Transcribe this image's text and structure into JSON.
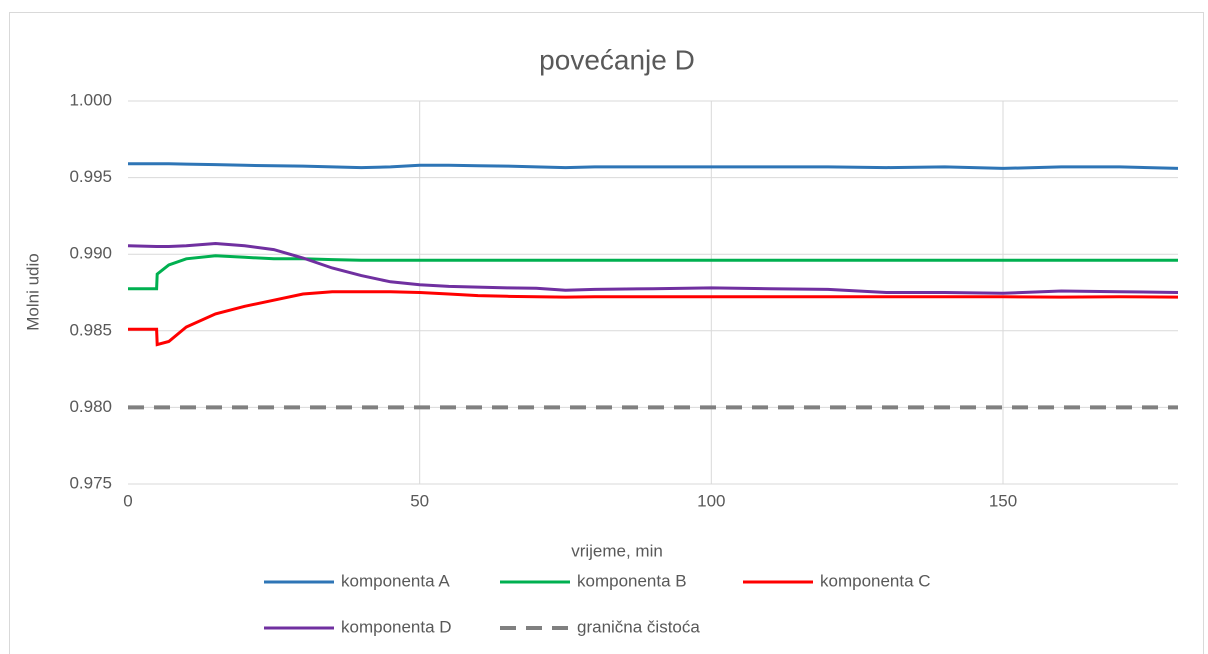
{
  "chart_data": {
    "type": "line",
    "title": "povećanje D",
    "x_label": "vrijeme, min",
    "y_label": "Molni udio",
    "xlim": [
      0,
      180
    ],
    "xticks": [
      0,
      50,
      100,
      150
    ],
    "ylim": [
      0.975,
      1.0
    ],
    "yticks": [
      {
        "value": 0.975,
        "label": "0.975"
      },
      {
        "value": 0.98,
        "label": "0.980"
      },
      {
        "value": 0.985,
        "label": "0.985"
      },
      {
        "value": 0.99,
        "label": "0.990"
      },
      {
        "value": 0.995,
        "label": "0.995"
      },
      {
        "value": 1.0,
        "label": "1.000"
      }
    ],
    "grid": true,
    "legend": "bottom",
    "x": [
      0,
      4.9,
      5,
      7,
      10,
      15,
      20,
      25,
      30,
      35,
      40,
      45,
      50,
      55,
      60,
      65,
      70,
      75,
      80,
      90,
      100,
      110,
      120,
      130,
      140,
      150,
      160,
      170,
      180
    ],
    "series": [
      {
        "name": "komponenta A",
        "color": "#2e75b6",
        "dashed": false,
        "values": [
          0.9959,
          0.9959,
          0.9959,
          0.9959,
          0.99588,
          0.99585,
          0.9958,
          0.99577,
          0.99575,
          0.9957,
          0.99565,
          0.9957,
          0.9958,
          0.9958,
          0.99578,
          0.99575,
          0.9957,
          0.99565,
          0.9957,
          0.9957,
          0.9957,
          0.9957,
          0.9957,
          0.99565,
          0.9957,
          0.9956,
          0.9957,
          0.9957,
          0.9956
        ]
      },
      {
        "name": "komponenta B",
        "color": "#00b050",
        "dashed": false,
        "values": [
          0.98775,
          0.98775,
          0.9887,
          0.9893,
          0.9897,
          0.9899,
          0.9898,
          0.9897,
          0.9897,
          0.98965,
          0.9896,
          0.9896,
          0.9896,
          0.9896,
          0.9896,
          0.9896,
          0.9896,
          0.9896,
          0.9896,
          0.9896,
          0.9896,
          0.9896,
          0.9896,
          0.9896,
          0.9896,
          0.9896,
          0.9896,
          0.9896,
          0.9896
        ]
      },
      {
        "name": "komponenta C",
        "color": "#ff0000",
        "dashed": false,
        "values": [
          0.9851,
          0.9851,
          0.9841,
          0.9843,
          0.98525,
          0.9861,
          0.9866,
          0.987,
          0.9874,
          0.98755,
          0.98755,
          0.98755,
          0.9875,
          0.9874,
          0.9873,
          0.98725,
          0.98722,
          0.9872,
          0.98722,
          0.98722,
          0.98722,
          0.98722,
          0.98722,
          0.98722,
          0.98722,
          0.98722,
          0.9872,
          0.98722,
          0.9872
        ]
      },
      {
        "name": "komponenta D",
        "color": "#7030a0",
        "dashed": false,
        "values": [
          0.99055,
          0.9905,
          0.9905,
          0.9905,
          0.99055,
          0.9907,
          0.99055,
          0.9903,
          0.98975,
          0.9891,
          0.9886,
          0.9882,
          0.988,
          0.9879,
          0.98785,
          0.9878,
          0.98778,
          0.98765,
          0.9877,
          0.98775,
          0.9878,
          0.98775,
          0.9877,
          0.9875,
          0.9875,
          0.98745,
          0.9876,
          0.98755,
          0.9875
        ]
      },
      {
        "name": "granična čistoća",
        "color": "#808080",
        "dashed": true,
        "values": [
          0.98,
          0.98,
          0.98,
          0.98,
          0.98,
          0.98,
          0.98,
          0.98,
          0.98,
          0.98,
          0.98,
          0.98,
          0.98,
          0.98,
          0.98,
          0.98,
          0.98,
          0.98,
          0.98,
          0.98,
          0.98,
          0.98,
          0.98,
          0.98,
          0.98,
          0.98,
          0.98,
          0.98,
          0.98
        ]
      }
    ]
  }
}
